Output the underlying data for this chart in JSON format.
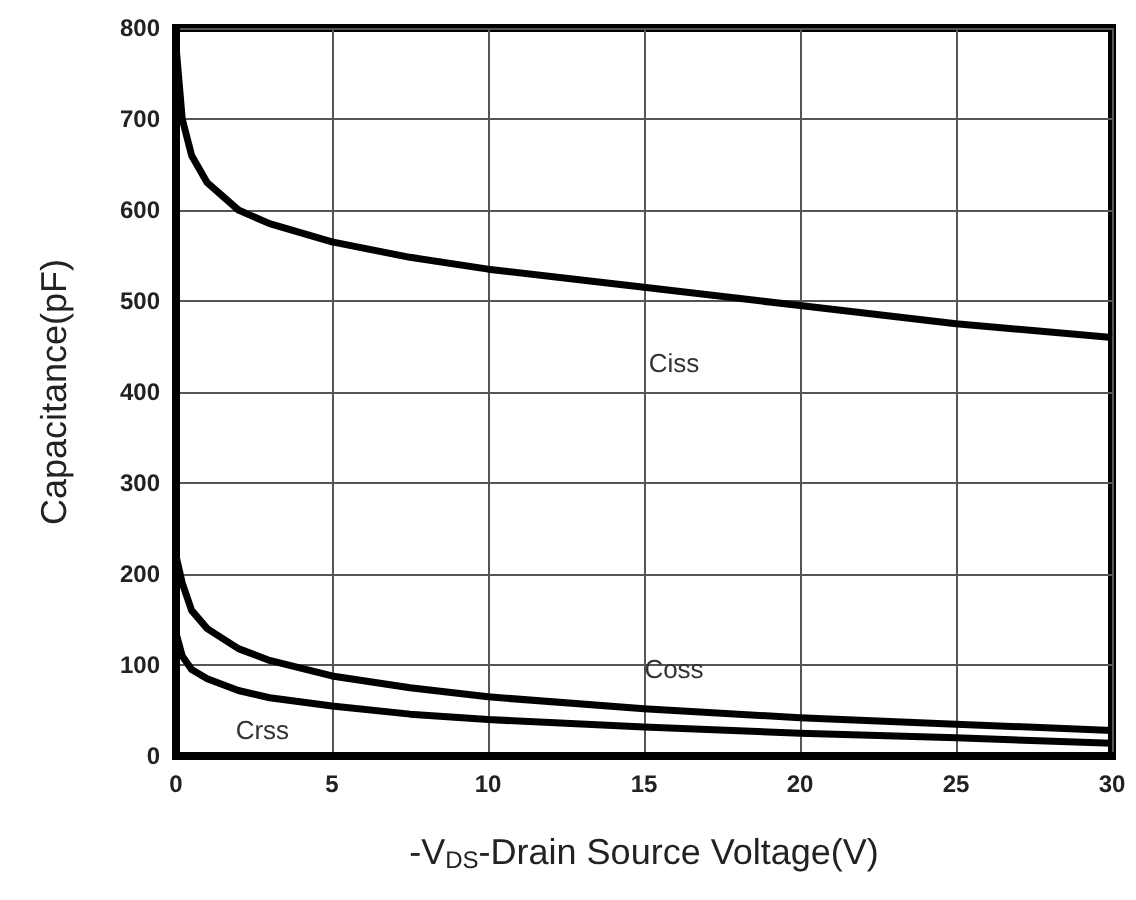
{
  "chart_data": {
    "type": "line",
    "xlabel": "-V$_{DS}$-Drain Source Voltage(V)",
    "ylabel": "Capacitance(pF)",
    "xlim": [
      0,
      30
    ],
    "xticks": [
      0,
      5,
      10,
      15,
      20,
      25,
      30
    ],
    "ylim": [
      0,
      800
    ],
    "yticks": [
      0,
      100,
      200,
      300,
      400,
      500,
      600,
      700,
      800
    ],
    "grid": true,
    "marker": "none",
    "line_style": "solid",
    "series": [
      {
        "name": "Ciss",
        "color": "#000000",
        "x": [
          0,
          0.2,
          0.5,
          1,
          2,
          3,
          5,
          7.5,
          10,
          15,
          20,
          25,
          30
        ],
        "values": [
          780,
          700,
          660,
          630,
          600,
          585,
          565,
          548,
          535,
          515,
          495,
          475,
          460
        ]
      },
      {
        "name": "Coss",
        "color": "#000000",
        "x": [
          0,
          0.2,
          0.5,
          1,
          2,
          3,
          5,
          7.5,
          10,
          15,
          20,
          25,
          30
        ],
        "values": [
          220,
          190,
          160,
          140,
          118,
          105,
          88,
          75,
          65,
          52,
          42,
          35,
          28
        ]
      },
      {
        "name": "Crss",
        "color": "#000000",
        "x": [
          0,
          0.2,
          0.5,
          1,
          2,
          3,
          5,
          7.5,
          10,
          15,
          20,
          25,
          30
        ],
        "values": [
          135,
          110,
          95,
          85,
          72,
          64,
          55,
          46,
          40,
          32,
          25,
          20,
          14
        ]
      }
    ]
  }
}
